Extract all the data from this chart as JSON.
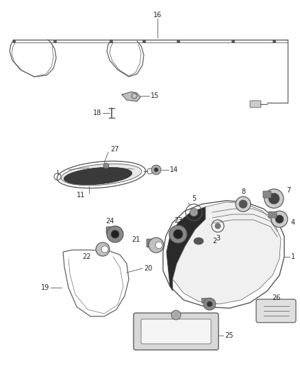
{
  "bg_color": "#ffffff",
  "line_color": "#555555",
  "lw": 0.85,
  "label_color": "#222222",
  "label_fontsize": 7
}
